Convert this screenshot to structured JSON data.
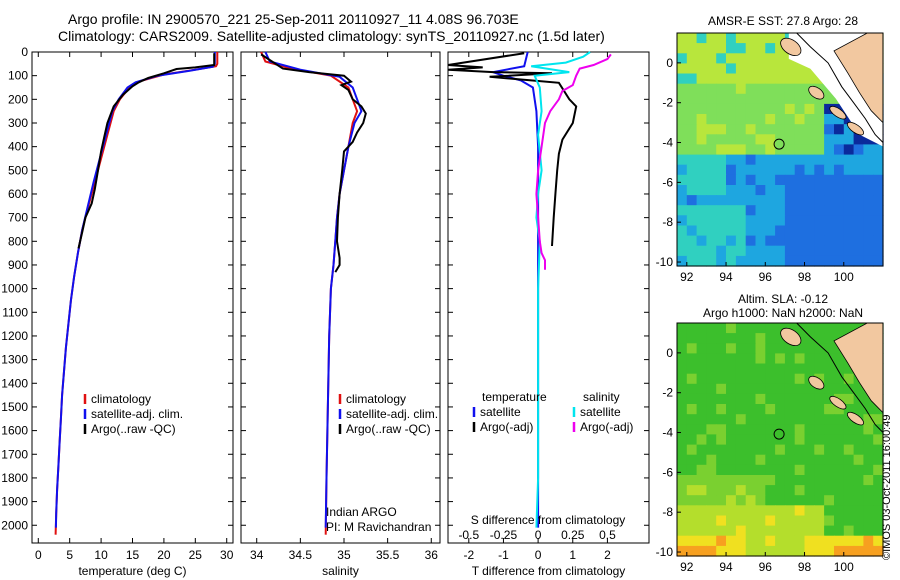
{
  "header": {
    "title_line1": "Argo profile: IN 2900570_221 25-Sep-2011 20110927_11 4.08S 96.703E",
    "title_line2": "Climatology: CARS2009. Satellite-adjusted climatology: synTS_20110927.nc (1.5d later)"
  },
  "colors": {
    "climatology": "#e01010",
    "satellite": "#1010ee",
    "argo": "#000000",
    "sat_salinity": "#00e5ee",
    "argo_salinity_diff": "#ee00ee"
  },
  "chart_data": [
    {
      "id": "temperature",
      "type": "line",
      "xlabel": "temperature (deg C)",
      "ylabel": "",
      "xlim": [
        -1,
        31
      ],
      "ylim": [
        2075,
        0
      ],
      "xticks": [
        0,
        5,
        10,
        15,
        20,
        25,
        30
      ],
      "xtick_labels": [
        "0",
        "5",
        "10",
        "15",
        "20",
        "25",
        "30"
      ],
      "yticks": [
        0,
        100,
        200,
        300,
        400,
        500,
        600,
        700,
        800,
        900,
        1000,
        1100,
        1200,
        1300,
        1400,
        1500,
        1600,
        1700,
        1800,
        1900,
        2000
      ],
      "ytick_labels": [
        "0",
        "100",
        "200",
        "300",
        "400",
        "500",
        "600",
        "700",
        "800",
        "900",
        "1000",
        "1100",
        "1200",
        "1300",
        "1400",
        "1500",
        "1600",
        "1700",
        "1800",
        "1900",
        "2000"
      ],
      "legend": [
        "climatology",
        "satellite-adj. clim.",
        "Argo(..raw -QC)"
      ],
      "series": [
        {
          "name": "climatology",
          "color": "#e01010",
          "points": [
            [
              28.5,
              0
            ],
            [
              28.5,
              50
            ],
            [
              28.3,
              60
            ],
            [
              25,
              75
            ],
            [
              20,
              95
            ],
            [
              16,
              125
            ],
            [
              14.5,
              150
            ],
            [
              13,
              200
            ],
            [
              12,
              250
            ],
            [
              11,
              350
            ],
            [
              10,
              450
            ],
            [
              9,
              550
            ],
            [
              8,
              650
            ],
            [
              7,
              750
            ],
            [
              6.3,
              850
            ],
            [
              5.7,
              950
            ],
            [
              5.2,
              1050
            ],
            [
              4.8,
              1150
            ],
            [
              4.4,
              1250
            ],
            [
              4.1,
              1350
            ],
            [
              3.8,
              1450
            ],
            [
              3.6,
              1550
            ],
            [
              3.4,
              1650
            ],
            [
              3.2,
              1750
            ],
            [
              3.0,
              1850
            ],
            [
              2.85,
              1950
            ],
            [
              2.75,
              2040
            ]
          ]
        },
        {
          "name": "satellite-adj. clim.",
          "color": "#1010ee",
          "points": [
            [
              28.1,
              0
            ],
            [
              28.1,
              50
            ],
            [
              27.8,
              62
            ],
            [
              24,
              80
            ],
            [
              19,
              100
            ],
            [
              15.5,
              128
            ],
            [
              14.2,
              150
            ],
            [
              12.8,
              200
            ],
            [
              11.8,
              250
            ],
            [
              10.8,
              350
            ],
            [
              9.8,
              450
            ],
            [
              8.8,
              550
            ],
            [
              7.9,
              650
            ],
            [
              7,
              750
            ],
            [
              6.3,
              850
            ],
            [
              5.7,
              950
            ],
            [
              5.2,
              1050
            ],
            [
              4.8,
              1150
            ],
            [
              4.4,
              1250
            ],
            [
              4.1,
              1350
            ],
            [
              3.8,
              1450
            ],
            [
              3.6,
              1550
            ],
            [
              3.4,
              1650
            ],
            [
              3.2,
              1750
            ],
            [
              3.0,
              1850
            ],
            [
              2.85,
              1950
            ],
            [
              2.8,
              2010
            ]
          ]
        },
        {
          "name": "Argo(..raw -QC)",
          "color": "#000000",
          "points": [
            [
              28.0,
              5
            ],
            [
              28.0,
              55
            ],
            [
              25,
              65
            ],
            [
              22,
              72
            ],
            [
              20,
              90
            ],
            [
              17.5,
              110
            ],
            [
              16,
              128
            ],
            [
              15,
              145
            ],
            [
              13.5,
              180
            ],
            [
              12,
              230
            ],
            [
              11,
              300
            ],
            [
              10.5,
              360
            ],
            [
              10,
              420
            ],
            [
              9.5,
              500
            ],
            [
              9,
              580
            ],
            [
              8.5,
              640
            ],
            [
              7.5,
              700
            ],
            [
              7,
              760
            ],
            [
              6.4,
              830
            ]
          ]
        }
      ]
    },
    {
      "id": "salinity",
      "type": "line",
      "xlabel": "salinity",
      "xlim": [
        33.82,
        36.1
      ],
      "ylim": [
        2075,
        0
      ],
      "xticks": [
        34,
        34.5,
        35,
        35.5,
        36
      ],
      "xtick_labels": [
        "34",
        "34.5",
        "35",
        "35.5",
        "36"
      ],
      "legend": [
        "climatology",
        "satellite-adj. clim.",
        "Argo(..raw -QC)"
      ],
      "annotation": [
        "Indian ARGO",
        "PI: M Ravichandran"
      ],
      "series": [
        {
          "name": "climatology",
          "color": "#e01010",
          "points": [
            [
              34.05,
              0
            ],
            [
              34.1,
              40
            ],
            [
              34.4,
              70
            ],
            [
              34.85,
              100
            ],
            [
              35.05,
              150
            ],
            [
              35.1,
              200
            ],
            [
              35.15,
              250
            ],
            [
              35.1,
              300
            ],
            [
              35.05,
              400
            ],
            [
              35.0,
              500
            ],
            [
              34.95,
              600
            ],
            [
              34.92,
              700
            ],
            [
              34.9,
              800
            ],
            [
              34.88,
              900
            ],
            [
              34.85,
              1000
            ],
            [
              34.83,
              1200
            ],
            [
              34.82,
              1400
            ],
            [
              34.81,
              1600
            ],
            [
              34.8,
              1800
            ],
            [
              34.79,
              2040
            ]
          ]
        },
        {
          "name": "satellite-adj. clim.",
          "color": "#1010ee",
          "points": [
            [
              34.1,
              0
            ],
            [
              34.15,
              40
            ],
            [
              34.5,
              75
            ],
            [
              34.95,
              105
            ],
            [
              35.1,
              150
            ],
            [
              35.15,
              200
            ],
            [
              35.2,
              250
            ],
            [
              35.12,
              300
            ],
            [
              35.05,
              400
            ],
            [
              35.0,
              500
            ],
            [
              34.95,
              600
            ],
            [
              34.92,
              700
            ],
            [
              34.9,
              800
            ],
            [
              34.88,
              900
            ],
            [
              34.85,
              1000
            ],
            [
              34.83,
              1200
            ],
            [
              34.82,
              1400
            ],
            [
              34.81,
              1600
            ],
            [
              34.8,
              1800
            ],
            [
              34.79,
              2010
            ]
          ]
        },
        {
          "name": "Argo(..raw -QC)",
          "color": "#000000",
          "points": [
            [
              34.05,
              10
            ],
            [
              34.3,
              70
            ],
            [
              34.6,
              85
            ],
            [
              35.0,
              100
            ],
            [
              35.08,
              125
            ],
            [
              34.97,
              140
            ],
            [
              35.05,
              160
            ],
            [
              35.1,
              200
            ],
            [
              35.2,
              230
            ],
            [
              35.25,
              260
            ],
            [
              35.22,
              300
            ],
            [
              35.15,
              340
            ],
            [
              35.1,
              380
            ],
            [
              35.0,
              420
            ],
            [
              34.98,
              500
            ],
            [
              34.95,
              600
            ],
            [
              34.93,
              700
            ],
            [
              34.92,
              800
            ],
            [
              34.95,
              870
            ],
            [
              34.95,
              900
            ],
            [
              34.9,
              930
            ]
          ]
        }
      ]
    },
    {
      "id": "difference",
      "type": "line",
      "xlabel": "T difference from climatology",
      "xlabel_top": "S difference from climatology",
      "xlim": [
        -2.6,
        3.2
      ],
      "ylim": [
        2075,
        0
      ],
      "xticks": [
        -2,
        -1,
        0,
        1,
        2
      ],
      "xtick_labels": [
        "-2",
        "-1",
        "0",
        "1",
        "2"
      ],
      "s_ticks": [
        -0.5,
        -0.25,
        0,
        0.25,
        0.5
      ],
      "s_tick_labels": [
        "-0.5",
        "-0.25",
        "0",
        "0.25",
        "0.5"
      ],
      "legend_temperature_heading": "temperature",
      "legend_salinity_heading": "salinity",
      "legend_temperature": [
        "satellite",
        "Argo(-adj)"
      ],
      "legend_salinity": [
        "satellite",
        "Argo(-adj)"
      ],
      "series": [
        {
          "name": "satellite",
          "color": "#1010ee",
          "points": [
            [
              -0.3,
              0
            ],
            [
              -0.4,
              60
            ],
            [
              -1.3,
              85
            ],
            [
              -1.0,
              100
            ],
            [
              -0.5,
              120
            ],
            [
              -0.15,
              150
            ],
            [
              -0.05,
              250
            ],
            [
              0,
              400
            ],
            [
              0,
              600
            ],
            [
              0,
              800
            ],
            [
              0,
              1000
            ],
            [
              0,
              1500
            ],
            [
              0,
              2010
            ]
          ]
        },
        {
          "name": "Argo(-adj)",
          "color": "#000000",
          "points": [
            [
              -0.4,
              5
            ],
            [
              -2.6,
              55
            ],
            [
              -1.6,
              65
            ],
            [
              -2.6,
              75
            ],
            [
              -1.3,
              85
            ],
            [
              0.4,
              90
            ],
            [
              -1.4,
              105
            ],
            [
              -0.2,
              120
            ],
            [
              0.6,
              130
            ],
            [
              0.9,
              200
            ],
            [
              1.1,
              230
            ],
            [
              1.0,
              300
            ],
            [
              0.7,
              370
            ],
            [
              0.6,
              430
            ],
            [
              0.55,
              500
            ],
            [
              0.5,
              600
            ],
            [
              0.45,
              700
            ],
            [
              0.4,
              820
            ]
          ]
        },
        {
          "name": "satellite",
          "color": "#00e5ee",
          "points": [
            [
              1.5,
              0
            ],
            [
              1.3,
              20
            ],
            [
              0.8,
              45
            ],
            [
              -0.2,
              60
            ],
            [
              0.9,
              85
            ],
            [
              -0.1,
              100
            ],
            [
              0.05,
              150
            ],
            [
              0.1,
              250
            ],
            [
              0,
              350
            ],
            [
              0.1,
              500
            ],
            [
              0,
              600
            ],
            [
              -0.05,
              700
            ],
            [
              0.05,
              800
            ],
            [
              0,
              1000
            ],
            [
              0,
              1500
            ],
            [
              0,
              1800
            ],
            [
              -0.05,
              2010
            ]
          ]
        },
        {
          "name": "Argo(-adj)",
          "color": "#ee00ee",
          "points": [
            [
              2.1,
              10
            ],
            [
              2.0,
              30
            ],
            [
              1.6,
              55
            ],
            [
              1.2,
              70
            ],
            [
              1.1,
              100
            ],
            [
              1.0,
              140
            ],
            [
              0.7,
              165
            ],
            [
              0.6,
              200
            ],
            [
              0.35,
              250
            ],
            [
              0.2,
              300
            ],
            [
              0.1,
              400
            ],
            [
              0.0,
              500
            ],
            [
              -0.05,
              600
            ],
            [
              0.0,
              700
            ],
            [
              0.05,
              800
            ],
            [
              0.1,
              850
            ],
            [
              0.2,
              880
            ],
            [
              0.2,
              920
            ]
          ]
        }
      ]
    },
    {
      "id": "sst_map",
      "type": "heatmap",
      "title": "AMSR-E SST: 27.8 Argo: 28",
      "xticks": [
        92,
        94,
        96,
        98,
        100
      ],
      "xtick_labels": [
        "92",
        "94",
        "96",
        "98",
        "100"
      ],
      "yticks": [
        0,
        -2,
        -4,
        -6,
        -8,
        -10
      ],
      "ytick_labels": [
        "0",
        "-2",
        "-4",
        "-6",
        "-8",
        "-10"
      ],
      "xlim": [
        91.5,
        102
      ],
      "ylim": [
        -10.2,
        1.5
      ],
      "marker": {
        "lon": 96.703,
        "lat": -4.08
      },
      "colors": [
        "#7fdf5a",
        "#b8e63c",
        "#30d0c0",
        "#1ea6e0",
        "#1e6fe0",
        "#0a2a9c"
      ]
    },
    {
      "id": "sla_map",
      "type": "heatmap",
      "title": "Altim. SLA: -0.12",
      "subtitle": "Argo h1000: NaN h2000: NaN",
      "xticks": [
        92,
        94,
        96,
        98,
        100
      ],
      "xtick_labels": [
        "92",
        "94",
        "96",
        "98",
        "100"
      ],
      "yticks": [
        0,
        -2,
        -4,
        -6,
        -8,
        -10
      ],
      "ytick_labels": [
        "0",
        "-2",
        "-4",
        "-6",
        "-8",
        "-10"
      ],
      "xlim": [
        91.5,
        102
      ],
      "ylim": [
        -10.2,
        1.5
      ],
      "marker": {
        "lon": 96.703,
        "lat": -4.08
      },
      "colors": [
        "#3cbf2c",
        "#7ad030",
        "#b4de2c",
        "#f0e020",
        "#f7a020"
      ]
    }
  ],
  "stamp": "©IMOS 03-Oct-2011 16:00:49"
}
